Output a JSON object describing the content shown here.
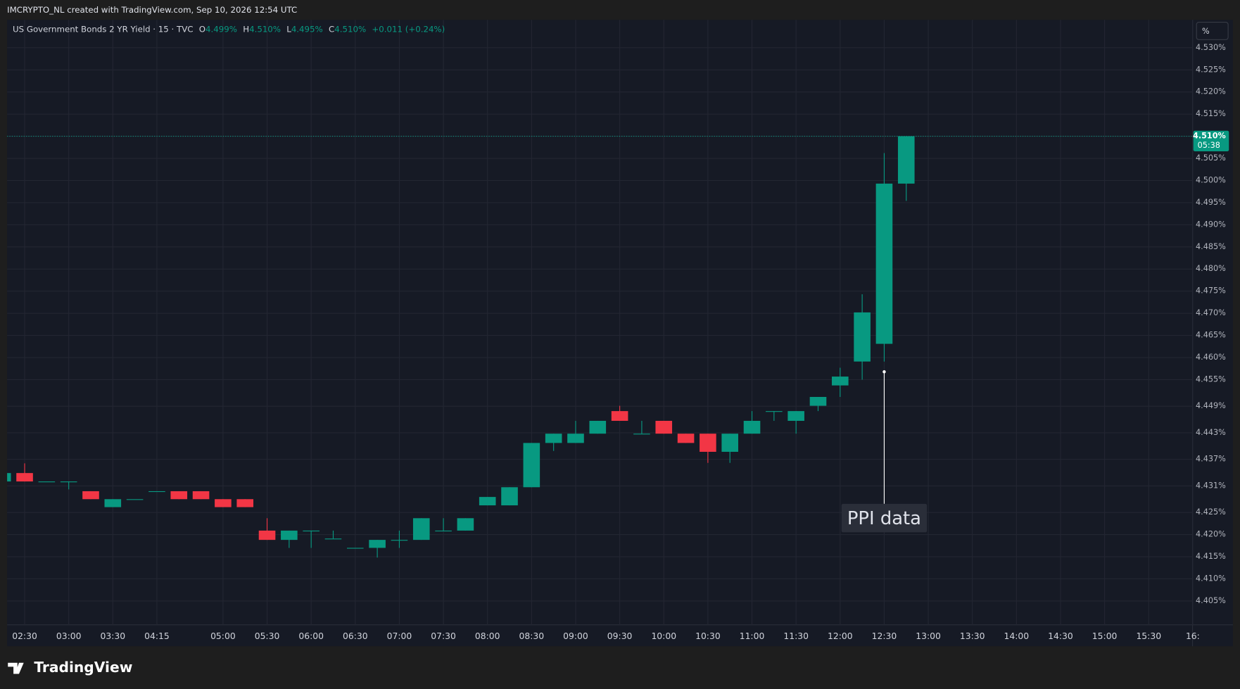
{
  "header": {
    "credit": "IMCRYPTO_NL created with TradingView.com, Sep 10, 2026 12:54 UTC"
  },
  "legend": {
    "symbol": "US Government Bonds 2 YR Yield · 15 · TVC",
    "o_label": "O",
    "o": "4.499%",
    "h_label": "H",
    "h": "4.510%",
    "l_label": "L",
    "l": "4.495%",
    "c_label": "C",
    "c": "4.510%",
    "change": "+0.011 (+0.24%)"
  },
  "toolbar": {
    "unit_button": "%"
  },
  "footer": {
    "logo": "TradingView"
  },
  "chart_data": {
    "type": "candlestick",
    "categories": [
      null,
      "02:30",
      null,
      "03:00",
      null,
      "03:30",
      null,
      "04:15",
      null,
      null,
      "05:00",
      null,
      "05:30",
      null,
      "06:00",
      null,
      "06:30",
      null,
      "07:00",
      null,
      "07:30",
      null,
      "08:00",
      null,
      "08:30",
      null,
      "09:00",
      null,
      "09:30",
      null,
      "10:00",
      null,
      "10:30",
      null,
      "11:00",
      null,
      "11:30",
      null,
      "12:00",
      null,
      "12:30",
      null,
      "13:00",
      null,
      "13:30",
      null,
      "14:00",
      null,
      "14:30",
      null,
      "15:00",
      null,
      "15:30",
      null,
      "16:"
    ],
    "open": [
      4.432,
      4.4339,
      4.432,
      4.432,
      4.4298,
      4.4262,
      4.428,
      4.4298,
      4.4298,
      4.4298,
      4.428,
      4.428,
      4.4209,
      4.4188,
      4.4209,
      4.4191,
      4.417,
      4.417,
      4.4188,
      4.4188,
      4.4209,
      4.4209,
      4.4266,
      4.4266,
      4.4307,
      4.4407,
      4.4407,
      4.4428,
      4.4479,
      4.4428,
      4.4457,
      4.4428,
      4.4428,
      4.4387,
      4.4428,
      4.4479,
      4.4457,
      4.4491,
      4.4537,
      4.4591,
      4.4631,
      4.4993,
      null,
      null,
      null,
      null,
      null,
      null,
      null,
      null,
      null,
      null,
      null,
      null,
      null
    ],
    "high": [
      4.4339,
      4.4361,
      4.432,
      4.432,
      4.4298,
      4.428,
      4.428,
      4.4298,
      4.4298,
      4.4298,
      4.428,
      4.428,
      4.4237,
      4.4209,
      4.4209,
      4.4209,
      4.417,
      4.4188,
      4.4209,
      4.4237,
      4.4237,
      4.4237,
      4.4285,
      4.4307,
      4.4407,
      4.4428,
      4.4457,
      4.4457,
      4.4491,
      4.4457,
      4.4457,
      4.4428,
      4.4428,
      4.4428,
      4.4479,
      4.4479,
      4.4479,
      4.4511,
      4.4577,
      4.4743,
      4.5062,
      4.51,
      null,
      null,
      null,
      null,
      null,
      null,
      null,
      null,
      null,
      null,
      null,
      null,
      null
    ],
    "low": [
      4.432,
      4.432,
      4.432,
      4.4302,
      4.428,
      4.4262,
      4.428,
      4.4298,
      4.428,
      4.428,
      4.4262,
      4.4262,
      4.4188,
      4.417,
      4.417,
      4.4191,
      4.417,
      4.4148,
      4.417,
      4.4188,
      4.4209,
      4.4209,
      4.4266,
      4.4266,
      4.4307,
      4.4389,
      4.4407,
      4.4428,
      4.4457,
      4.4428,
      4.4428,
      4.4407,
      4.4362,
      4.4362,
      4.4428,
      4.4457,
      4.4428,
      4.4479,
      4.4511,
      4.455,
      4.4591,
      4.4954,
      null,
      null,
      null,
      null,
      null,
      null,
      null,
      null,
      null,
      null,
      null,
      null,
      null
    ],
    "close": [
      4.4339,
      4.432,
      4.432,
      4.432,
      4.428,
      4.428,
      4.428,
      4.4298,
      4.428,
      4.428,
      4.4262,
      4.4262,
      4.4188,
      4.4209,
      4.4209,
      4.4191,
      4.417,
      4.4188,
      4.4188,
      4.4237,
      4.4209,
      4.4237,
      4.4285,
      4.4307,
      4.4407,
      4.4428,
      4.4428,
      4.4457,
      4.4457,
      4.4428,
      4.4428,
      4.4407,
      4.4387,
      4.4428,
      4.4457,
      4.4479,
      4.4479,
      4.4511,
      4.4557,
      4.4702,
      4.4993,
      4.51,
      null,
      null,
      null,
      null,
      null,
      null,
      null,
      null,
      null,
      null,
      null,
      null,
      null
    ],
    "up_color": "#089981",
    "down_color": "#f23645",
    "ylim": [
      4.3996,
      4.5363
    ],
    "yticks": [
      {
        "value": 4.53,
        "label": "4.530%"
      },
      {
        "value": 4.525,
        "label": "4.525%"
      },
      {
        "value": 4.52,
        "label": "4.520%"
      },
      {
        "value": 4.515,
        "label": "4.515%"
      },
      {
        "value": 4.51,
        "label": "4.510%"
      },
      {
        "value": 4.505,
        "label": "4.505%"
      },
      {
        "value": 4.5,
        "label": "4.500%"
      },
      {
        "value": 4.495,
        "label": "4.495%"
      },
      {
        "value": 4.49,
        "label": "4.490%"
      },
      {
        "value": 4.485,
        "label": "4.485%"
      },
      {
        "value": 4.48,
        "label": "4.480%"
      },
      {
        "value": 4.475,
        "label": "4.475%"
      },
      {
        "value": 4.47,
        "label": "4.470%"
      },
      {
        "value": 4.465,
        "label": "4.465%"
      },
      {
        "value": 4.46,
        "label": "4.460%"
      },
      {
        "value": 4.455,
        "label": "4.455%"
      },
      {
        "value": 4.449,
        "label": "4.449%"
      },
      {
        "value": 4.443,
        "label": "4.443%"
      },
      {
        "value": 4.437,
        "label": "4.437%"
      },
      {
        "value": 4.431,
        "label": "4.431%"
      },
      {
        "value": 4.425,
        "label": "4.425%"
      },
      {
        "value": 4.42,
        "label": "4.420%"
      },
      {
        "value": 4.415,
        "label": "4.415%"
      },
      {
        "value": 4.41,
        "label": "4.410%"
      },
      {
        "value": 4.405,
        "label": "4.405%"
      }
    ],
    "grid": true,
    "last_price_label": "4.510%",
    "countdown": "05:38",
    "annotation": "PPI data"
  }
}
